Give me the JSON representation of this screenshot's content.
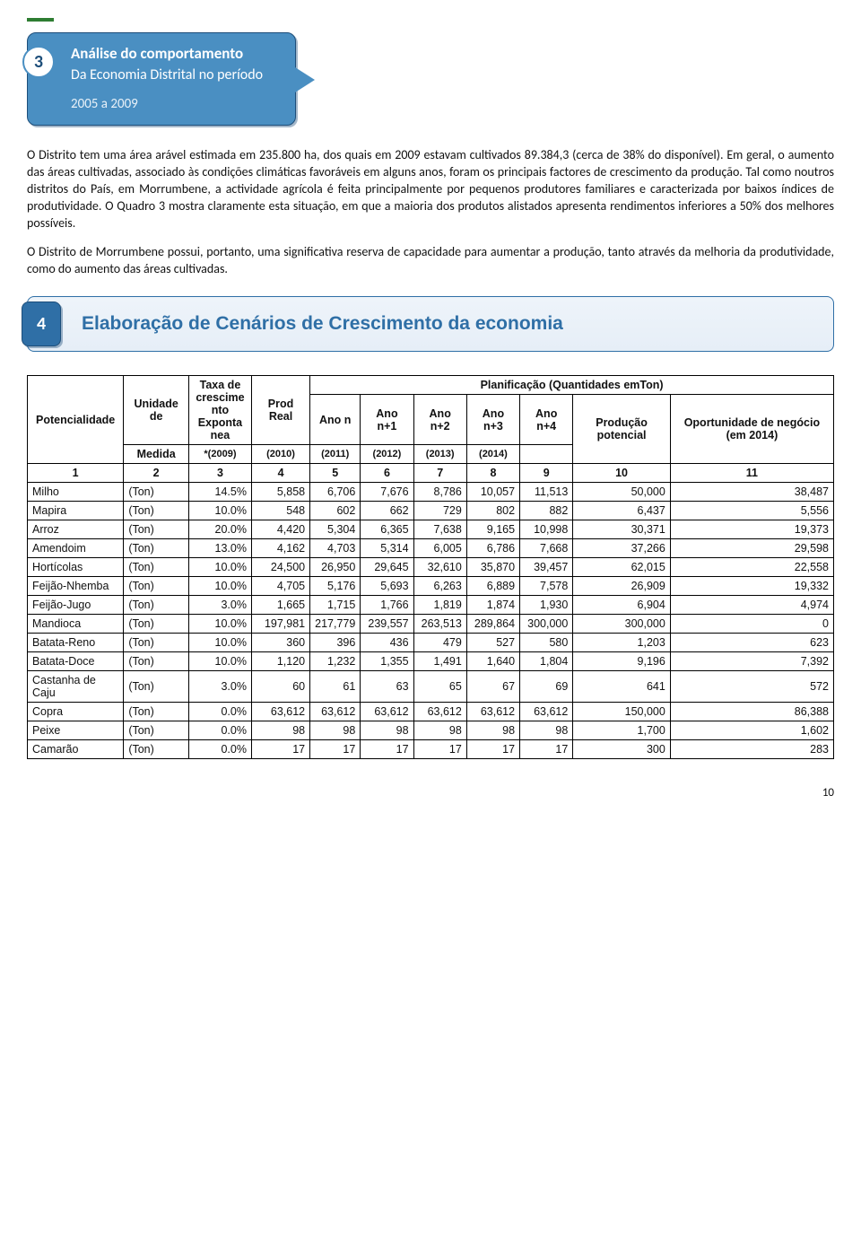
{
  "callout3": {
    "num": "3",
    "line1": "Análise do comportamento",
    "line2": "Da Economia Distrital no período",
    "line3": "2005 a 2009"
  },
  "paragraphs": {
    "p1": "O Distrito tem uma área arável estimada em 235.800 ha, dos quais em 2009 estavam cultivados 89.384,3 (cerca de 38% do disponível). Em geral, o aumento das áreas cultivadas, associado às condições climáticas favoráveis em alguns anos, foram os principais factores de crescimento da produção. Tal como noutros distritos do País, em Morrumbene, a actividade agrícola é feita principalmente por pequenos produtores familiares e caracterizada por baixos índices de produtividade. O Quadro 3 mostra claramente esta situação, em que a maioria dos produtos alistados apresenta rendimentos inferiores a 50% dos melhores possíveis.",
    "p2": "O Distrito de Morrumbene possui, portanto, uma significativa reserva de capacidade para aumentar a produção, tanto através da melhoria da produtividade, como do aumento das áreas cultivadas."
  },
  "callout4": {
    "num": "4",
    "title": "Elaboração de Cenários de Crescimento da economia"
  },
  "table": {
    "header": {
      "c1": "Potencialidade",
      "c2_top": "Unidade de",
      "c2_bot": "Medida",
      "c3": "Taxa de crescime nto Exponta nea",
      "c3_sub": "*(2009)",
      "c4": "Prod Real",
      "c4_sub": "(2010)",
      "plan_title": "Planificação (Quantidades emTon)",
      "y1": "Ano n",
      "y2": "Ano n+1",
      "y3": "Ano n+2",
      "y4": "Ano n+3",
      "y5": "Ano n+4",
      "y1s": "(2010)",
      "y2s": "(2011)",
      "y3s": "(2012)",
      "y4s": "(2013)",
      "y5s": "(2014)",
      "c10": "Produção potencial",
      "c11": "Oportunidade de negócio (em 2014)"
    },
    "colnums": [
      "1",
      "2",
      "3",
      "4",
      "5",
      "6",
      "7",
      "8",
      "9",
      "10",
      "11"
    ],
    "rows": [
      {
        "name": "Milho",
        "unit": "(Ton)",
        "rate": "14.5%",
        "v": [
          "5,858",
          "6,706",
          "7,676",
          "8,786",
          "10,057",
          "11,513",
          "50,000",
          "38,487"
        ]
      },
      {
        "name": "Mapira",
        "unit": "(Ton)",
        "rate": "10.0%",
        "v": [
          "548",
          "602",
          "662",
          "729",
          "802",
          "882",
          "6,437",
          "5,556"
        ]
      },
      {
        "name": "Arroz",
        "unit": "(Ton)",
        "rate": "20.0%",
        "v": [
          "4,420",
          "5,304",
          "6,365",
          "7,638",
          "9,165",
          "10,998",
          "30,371",
          "19,373"
        ]
      },
      {
        "name": "Amendoim",
        "unit": "(Ton)",
        "rate": "13.0%",
        "v": [
          "4,162",
          "4,703",
          "5,314",
          "6,005",
          "6,786",
          "7,668",
          "37,266",
          "29,598"
        ]
      },
      {
        "name": "Hortícolas",
        "unit": "(Ton)",
        "rate": "10.0%",
        "v": [
          "24,500",
          "26,950",
          "29,645",
          "32,610",
          "35,870",
          "39,457",
          "62,015",
          "22,558"
        ]
      },
      {
        "name": "Feijão-Nhemba",
        "unit": "(Ton)",
        "rate": "10.0%",
        "v": [
          "4,705",
          "5,176",
          "5,693",
          "6,263",
          "6,889",
          "7,578",
          "26,909",
          "19,332"
        ]
      },
      {
        "name": "Feijão-Jugo",
        "unit": "(Ton)",
        "rate": "3.0%",
        "v": [
          "1,665",
          "1,715",
          "1,766",
          "1,819",
          "1,874",
          "1,930",
          "6,904",
          "4,974"
        ]
      },
      {
        "name": "Mandioca",
        "unit": "(Ton)",
        "rate": "10.0%",
        "v": [
          "197,981",
          "217,779",
          "239,557",
          "263,513",
          "289,864",
          "300,000",
          "300,000",
          "0"
        ]
      },
      {
        "name": "Batata-Reno",
        "unit": "(Ton)",
        "rate": "10.0%",
        "v": [
          "360",
          "396",
          "436",
          "479",
          "527",
          "580",
          "1,203",
          "623"
        ]
      },
      {
        "name": "Batata-Doce",
        "unit": "(Ton)",
        "rate": "10.0%",
        "v": [
          "1,120",
          "1,232",
          "1,355",
          "1,491",
          "1,640",
          "1,804",
          "9,196",
          "7,392"
        ]
      },
      {
        "name": "Castanha de Caju",
        "unit": "(Ton)",
        "rate": "3.0%",
        "v": [
          "60",
          "61",
          "63",
          "65",
          "67",
          "69",
          "641",
          "572"
        ]
      },
      {
        "name": "Copra",
        "unit": "(Ton)",
        "rate": "0.0%",
        "v": [
          "63,612",
          "63,612",
          "63,612",
          "63,612",
          "63,612",
          "63,612",
          "150,000",
          "86,388"
        ]
      },
      {
        "name": "Peixe",
        "unit": "(Ton)",
        "rate": "0.0%",
        "v": [
          "98",
          "98",
          "98",
          "98",
          "98",
          "98",
          "1,700",
          "1,602"
        ]
      },
      {
        "name": "Camarão",
        "unit": "(Ton)",
        "rate": "0.0%",
        "v": [
          "17",
          "17",
          "17",
          "17",
          "17",
          "17",
          "300",
          "283"
        ]
      }
    ]
  },
  "page_number": "10"
}
